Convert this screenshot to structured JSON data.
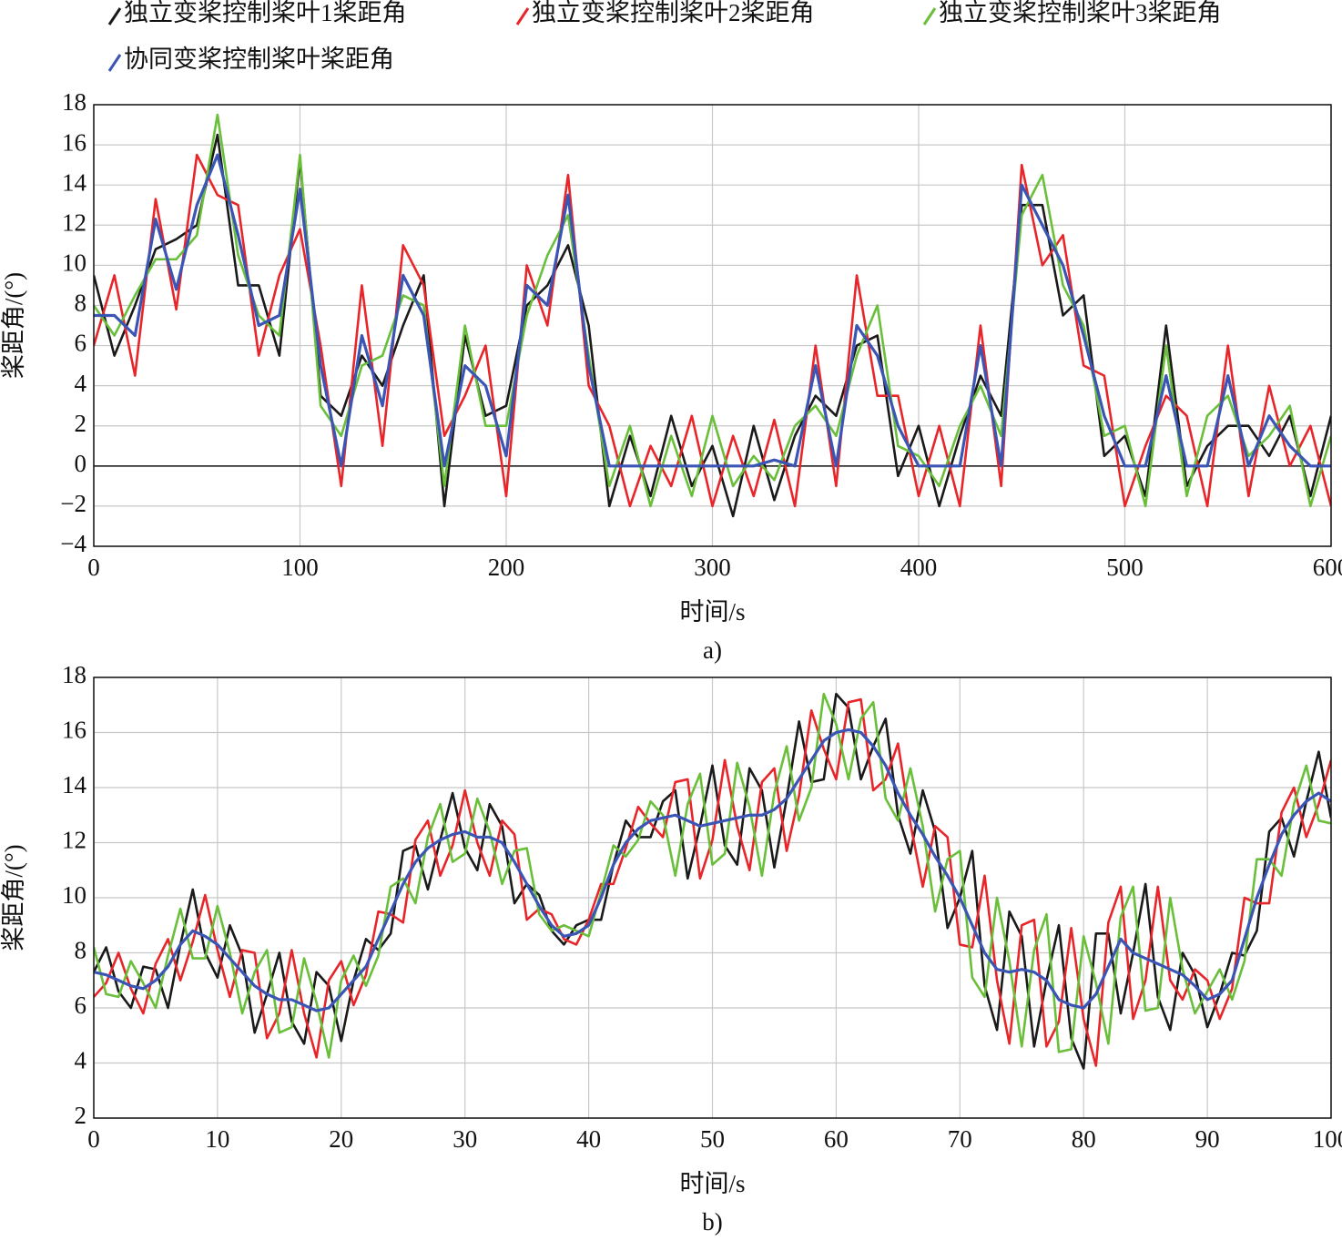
{
  "chart_data": [
    {
      "type": "line",
      "caption": "a)",
      "xlabel": "时间/s",
      "ylabel": "桨距角/(°)",
      "legend": "top",
      "grid": true,
      "xlim": [
        0,
        600
      ],
      "ylim": [
        -4,
        18
      ],
      "xticks": [
        0,
        100,
        200,
        300,
        400,
        500,
        600
      ],
      "yticks": [
        {
          "value": -4,
          "label": "−4"
        },
        {
          "value": -2,
          "label": "−2"
        },
        0,
        2,
        4,
        6,
        8,
        10,
        12,
        14,
        16,
        18
      ],
      "x": [
        0,
        10,
        20,
        30,
        40,
        50,
        60,
        70,
        80,
        90,
        100,
        110,
        120,
        130,
        140,
        150,
        160,
        170,
        180,
        190,
        200,
        210,
        220,
        230,
        240,
        250,
        260,
        270,
        280,
        290,
        300,
        310,
        320,
        330,
        340,
        350,
        360,
        370,
        380,
        390,
        400,
        410,
        420,
        430,
        440,
        450,
        460,
        470,
        480,
        490,
        500,
        510,
        520,
        530,
        540,
        550,
        560,
        570,
        580,
        590,
        600
      ],
      "series": [
        {
          "name": "独立变桨控制桨叶1桨距角",
          "color": "#1a1a1a",
          "values": [
            9.5,
            5.5,
            8,
            10.8,
            11.3,
            12,
            16.5,
            9,
            9,
            5.5,
            15.3,
            3.5,
            2.5,
            5.5,
            4,
            7,
            9.5,
            -2,
            6.5,
            2.5,
            3,
            8,
            9,
            11,
            7,
            -2,
            1.5,
            -1.5,
            2.5,
            -1,
            1,
            -2.5,
            2,
            -1.7,
            1.5,
            3.5,
            2.5,
            6,
            6.5,
            -0.5,
            2,
            -2,
            1.5,
            4.5,
            2.5,
            13,
            13,
            7.5,
            8.5,
            0.5,
            1.5,
            -1.5,
            7,
            -1,
            1,
            2,
            2,
            0.5,
            2.5,
            -1.5,
            2.5
          ]
        },
        {
          "name": "独立变桨控制桨叶2桨距角",
          "color": "#e8262a",
          "values": [
            6,
            9.5,
            4.5,
            13.3,
            7.8,
            15.5,
            13.5,
            13,
            5.5,
            9.5,
            11.8,
            6,
            -1,
            9,
            1,
            11,
            9,
            1.5,
            3.5,
            6,
            -1.5,
            10,
            7,
            14.5,
            4,
            2,
            -2,
            1,
            -1,
            2.5,
            -2,
            1.5,
            -1.5,
            2.3,
            -2,
            6,
            -1,
            9.5,
            3.5,
            3.5,
            -1.5,
            2,
            -2,
            7,
            -1,
            15,
            10,
            11.5,
            5,
            4.5,
            -2,
            1,
            3.5,
            2.5,
            -2,
            6,
            -1.5,
            4,
            0,
            2,
            -2
          ]
        },
        {
          "name": "独立变桨控制桨叶3桨距角",
          "color": "#6abf3a",
          "values": [
            8,
            6.5,
            8.5,
            10.3,
            10.3,
            11.5,
            17.5,
            10.5,
            7.5,
            6.5,
            15.5,
            3,
            1.5,
            5,
            5.5,
            8.5,
            8,
            -1,
            7,
            2,
            2,
            7.5,
            10.5,
            12.5,
            5.5,
            -1,
            2,
            -2,
            1.5,
            -1.5,
            2.5,
            -1,
            0.5,
            -0.7,
            2,
            3,
            1.5,
            5.5,
            8,
            1,
            0.5,
            -1,
            2,
            4,
            1.5,
            12.5,
            14.5,
            9,
            7,
            1.5,
            2,
            -2,
            6,
            -1.5,
            2.5,
            3.5,
            0.5,
            1.5,
            3,
            -2,
            1.5
          ]
        },
        {
          "name": "协同变桨控制桨叶桨距角",
          "color": "#3b55b5",
          "values": [
            7.5,
            7.5,
            6.5,
            12.3,
            8.8,
            13,
            15.5,
            11.5,
            7,
            7.5,
            13.8,
            5,
            0,
            6.5,
            3,
            9.5,
            7.5,
            0,
            5,
            4,
            0.5,
            9,
            8,
            13.5,
            5,
            0,
            0,
            0,
            0,
            0,
            0,
            0,
            0,
            0.3,
            0,
            5,
            0,
            7,
            5.5,
            2,
            0,
            0,
            0,
            6,
            0,
            14,
            12,
            10,
            6.5,
            2.5,
            0,
            0,
            4.5,
            0,
            0,
            4.5,
            0,
            2.5,
            1,
            0,
            0
          ]
        }
      ]
    },
    {
      "type": "line",
      "caption": "b)",
      "xlabel": "时间/s",
      "ylabel": "桨距角/(°)",
      "grid": true,
      "xlim": [
        0,
        100
      ],
      "ylim": [
        2,
        18
      ],
      "xticks": [
        0,
        10,
        20,
        30,
        40,
        50,
        60,
        70,
        80,
        90,
        100
      ],
      "yticks": [
        2,
        4,
        6,
        8,
        10,
        12,
        14,
        16,
        18
      ],
      "x": [
        0,
        1,
        2,
        3,
        4,
        5,
        6,
        7,
        8,
        9,
        10,
        11,
        12,
        13,
        14,
        15,
        16,
        17,
        18,
        19,
        20,
        21,
        22,
        23,
        24,
        25,
        26,
        27,
        28,
        29,
        30,
        31,
        32,
        33,
        34,
        35,
        36,
        37,
        38,
        39,
        40,
        41,
        42,
        43,
        44,
        45,
        46,
        47,
        48,
        49,
        50,
        51,
        52,
        53,
        54,
        55,
        56,
        57,
        58,
        59,
        60,
        61,
        62,
        63,
        64,
        65,
        66,
        67,
        68,
        69,
        70,
        71,
        72,
        73,
        74,
        75,
        76,
        77,
        78,
        79,
        80,
        81,
        82,
        83,
        84,
        85,
        86,
        87,
        88,
        89,
        90,
        91,
        92,
        93,
        94,
        95,
        96,
        97,
        98,
        99,
        100
      ],
      "series": [
        {
          "color": "#1a1a1a",
          "values": [
            7.3,
            8.2,
            6.6,
            6.0,
            7.5,
            7.4,
            6.0,
            8.3,
            10.3,
            8.0,
            7.1,
            9.0,
            7.9,
            5.1,
            6.5,
            8.0,
            5.5,
            4.7,
            7.3,
            6.8,
            4.8,
            7.0,
            8.5,
            8.1,
            8.7,
            11.7,
            11.9,
            10.3,
            12.1,
            13.8,
            11.8,
            11.0,
            13.4,
            12.6,
            9.8,
            10.5,
            10.1,
            8.8,
            8.3,
            9.0,
            9.2,
            9.2,
            11.2,
            12.8,
            12.2,
            12.2,
            13.5,
            13.9,
            10.7,
            12.6,
            14.8,
            11.9,
            11.2,
            14.7,
            13.9,
            11.1,
            13.6,
            16.4,
            14.2,
            14.3,
            17.4,
            16.9,
            14.3,
            15.5,
            16.5,
            13.0,
            11.6,
            13.9,
            12.4,
            8.9,
            10.0,
            11.7,
            6.8,
            5.2,
            9.5,
            8.6,
            4.6,
            7.0,
            9.0,
            4.9,
            3.8,
            8.7,
            8.7,
            5.8,
            8.0,
            10.5,
            6.4,
            5.2,
            8.0,
            7.2,
            5.3,
            6.5,
            8.0,
            7.9,
            8.8,
            12.4,
            12.9,
            11.5,
            13.5,
            15.3,
            12.9
          ]
        },
        {
          "color": "#e8262a",
          "values": [
            6.4,
            6.9,
            8.0,
            6.7,
            5.8,
            7.6,
            8.5,
            7.0,
            8.4,
            10.1,
            8.1,
            6.4,
            8.1,
            8.0,
            4.9,
            5.8,
            8.1,
            5.8,
            4.2,
            7.0,
            7.7,
            6.1,
            7.2,
            9.5,
            9.4,
            9.1,
            12.1,
            12.8,
            10.8,
            11.9,
            13.9,
            12.0,
            10.8,
            12.8,
            12.3,
            9.2,
            9.6,
            9.4,
            8.5,
            8.3,
            9.2,
            10.5,
            10.5,
            11.8,
            13.3,
            12.7,
            12.2,
            14.2,
            14.3,
            10.7,
            12.1,
            15.0,
            12.6,
            11.0,
            14.2,
            14.7,
            11.7,
            13.7,
            16.8,
            15.4,
            14.3,
            17.1,
            17.2,
            13.9,
            14.3,
            15.6,
            12.7,
            10.4,
            12.6,
            12.2,
            8.3,
            8.2,
            10.8,
            7.0,
            4.7,
            9.0,
            9.2,
            4.6,
            5.5,
            8.9,
            5.6,
            3.9,
            9.1,
            10.4,
            5.6,
            7.0,
            10.4,
            7.0,
            6.3,
            7.4,
            7.0,
            5.6,
            6.7,
            10.0,
            9.8,
            9.8,
            13.1,
            14.0,
            12.2,
            13.4,
            15.0
          ]
        },
        {
          "color": "#6abf3a",
          "values": [
            8.2,
            6.5,
            6.4,
            7.7,
            6.9,
            6.0,
            7.9,
            9.6,
            7.8,
            7.8,
            9.7,
            8.0,
            5.8,
            7.3,
            8.1,
            5.1,
            5.3,
            7.8,
            6.2,
            4.2,
            7.0,
            7.9,
            6.8,
            7.9,
            10.4,
            10.7,
            9.8,
            12.2,
            13.4,
            11.3,
            11.6,
            13.6,
            12.4,
            10.5,
            11.7,
            11.8,
            9.4,
            8.8,
            9.0,
            8.8,
            8.6,
            10.2,
            11.9,
            11.5,
            12.1,
            13.5,
            13.0,
            10.8,
            13.4,
            14.5,
            11.2,
            11.6,
            14.9,
            13.3,
            10.8,
            13.8,
            15.5,
            12.8,
            14.0,
            17.4,
            16.3,
            14.3,
            16.5,
            17.1,
            13.6,
            12.8,
            14.7,
            12.6,
            9.5,
            11.4,
            11.7,
            7.1,
            6.4,
            10.0,
            7.7,
            4.6,
            8.1,
            9.4,
            4.4,
            4.5,
            8.6,
            6.9,
            4.7,
            9.3,
            10.4,
            5.9,
            6.0,
            10.0,
            7.4,
            5.8,
            6.6,
            7.4,
            6.3,
            7.7,
            11.4,
            11.4,
            10.8,
            13.4,
            14.8,
            12.8,
            12.7
          ]
        },
        {
          "color": "#3b55b5",
          "values": [
            7.3,
            7.2,
            7.0,
            6.8,
            6.7,
            7.0,
            7.5,
            8.3,
            8.8,
            8.6,
            8.3,
            7.8,
            7.3,
            6.8,
            6.5,
            6.3,
            6.3,
            6.1,
            5.9,
            6.0,
            6.5,
            7.0,
            7.5,
            8.5,
            9.5,
            10.5,
            11.3,
            11.8,
            12.1,
            12.3,
            12.4,
            12.2,
            12.2,
            12.0,
            11.3,
            10.5,
            9.7,
            9.0,
            8.6,
            8.7,
            9.0,
            10.0,
            11.2,
            12.0,
            12.5,
            12.8,
            12.9,
            13.0,
            12.8,
            12.6,
            12.7,
            12.8,
            12.9,
            13.0,
            13.0,
            13.2,
            13.6,
            14.3,
            15.0,
            15.7,
            16.0,
            16.1,
            16.0,
            15.5,
            14.8,
            13.8,
            13.0,
            12.3,
            11.5,
            10.8,
            10.0,
            9.0,
            8.0,
            7.4,
            7.3,
            7.4,
            7.3,
            7.0,
            6.3,
            6.1,
            6.0,
            6.5,
            7.5,
            8.5,
            8.0,
            7.8,
            7.6,
            7.4,
            7.2,
            6.8,
            6.3,
            6.5,
            7.0,
            8.5,
            10.0,
            11.2,
            12.3,
            13.0,
            13.5,
            13.8,
            13.5
          ]
        }
      ]
    }
  ]
}
